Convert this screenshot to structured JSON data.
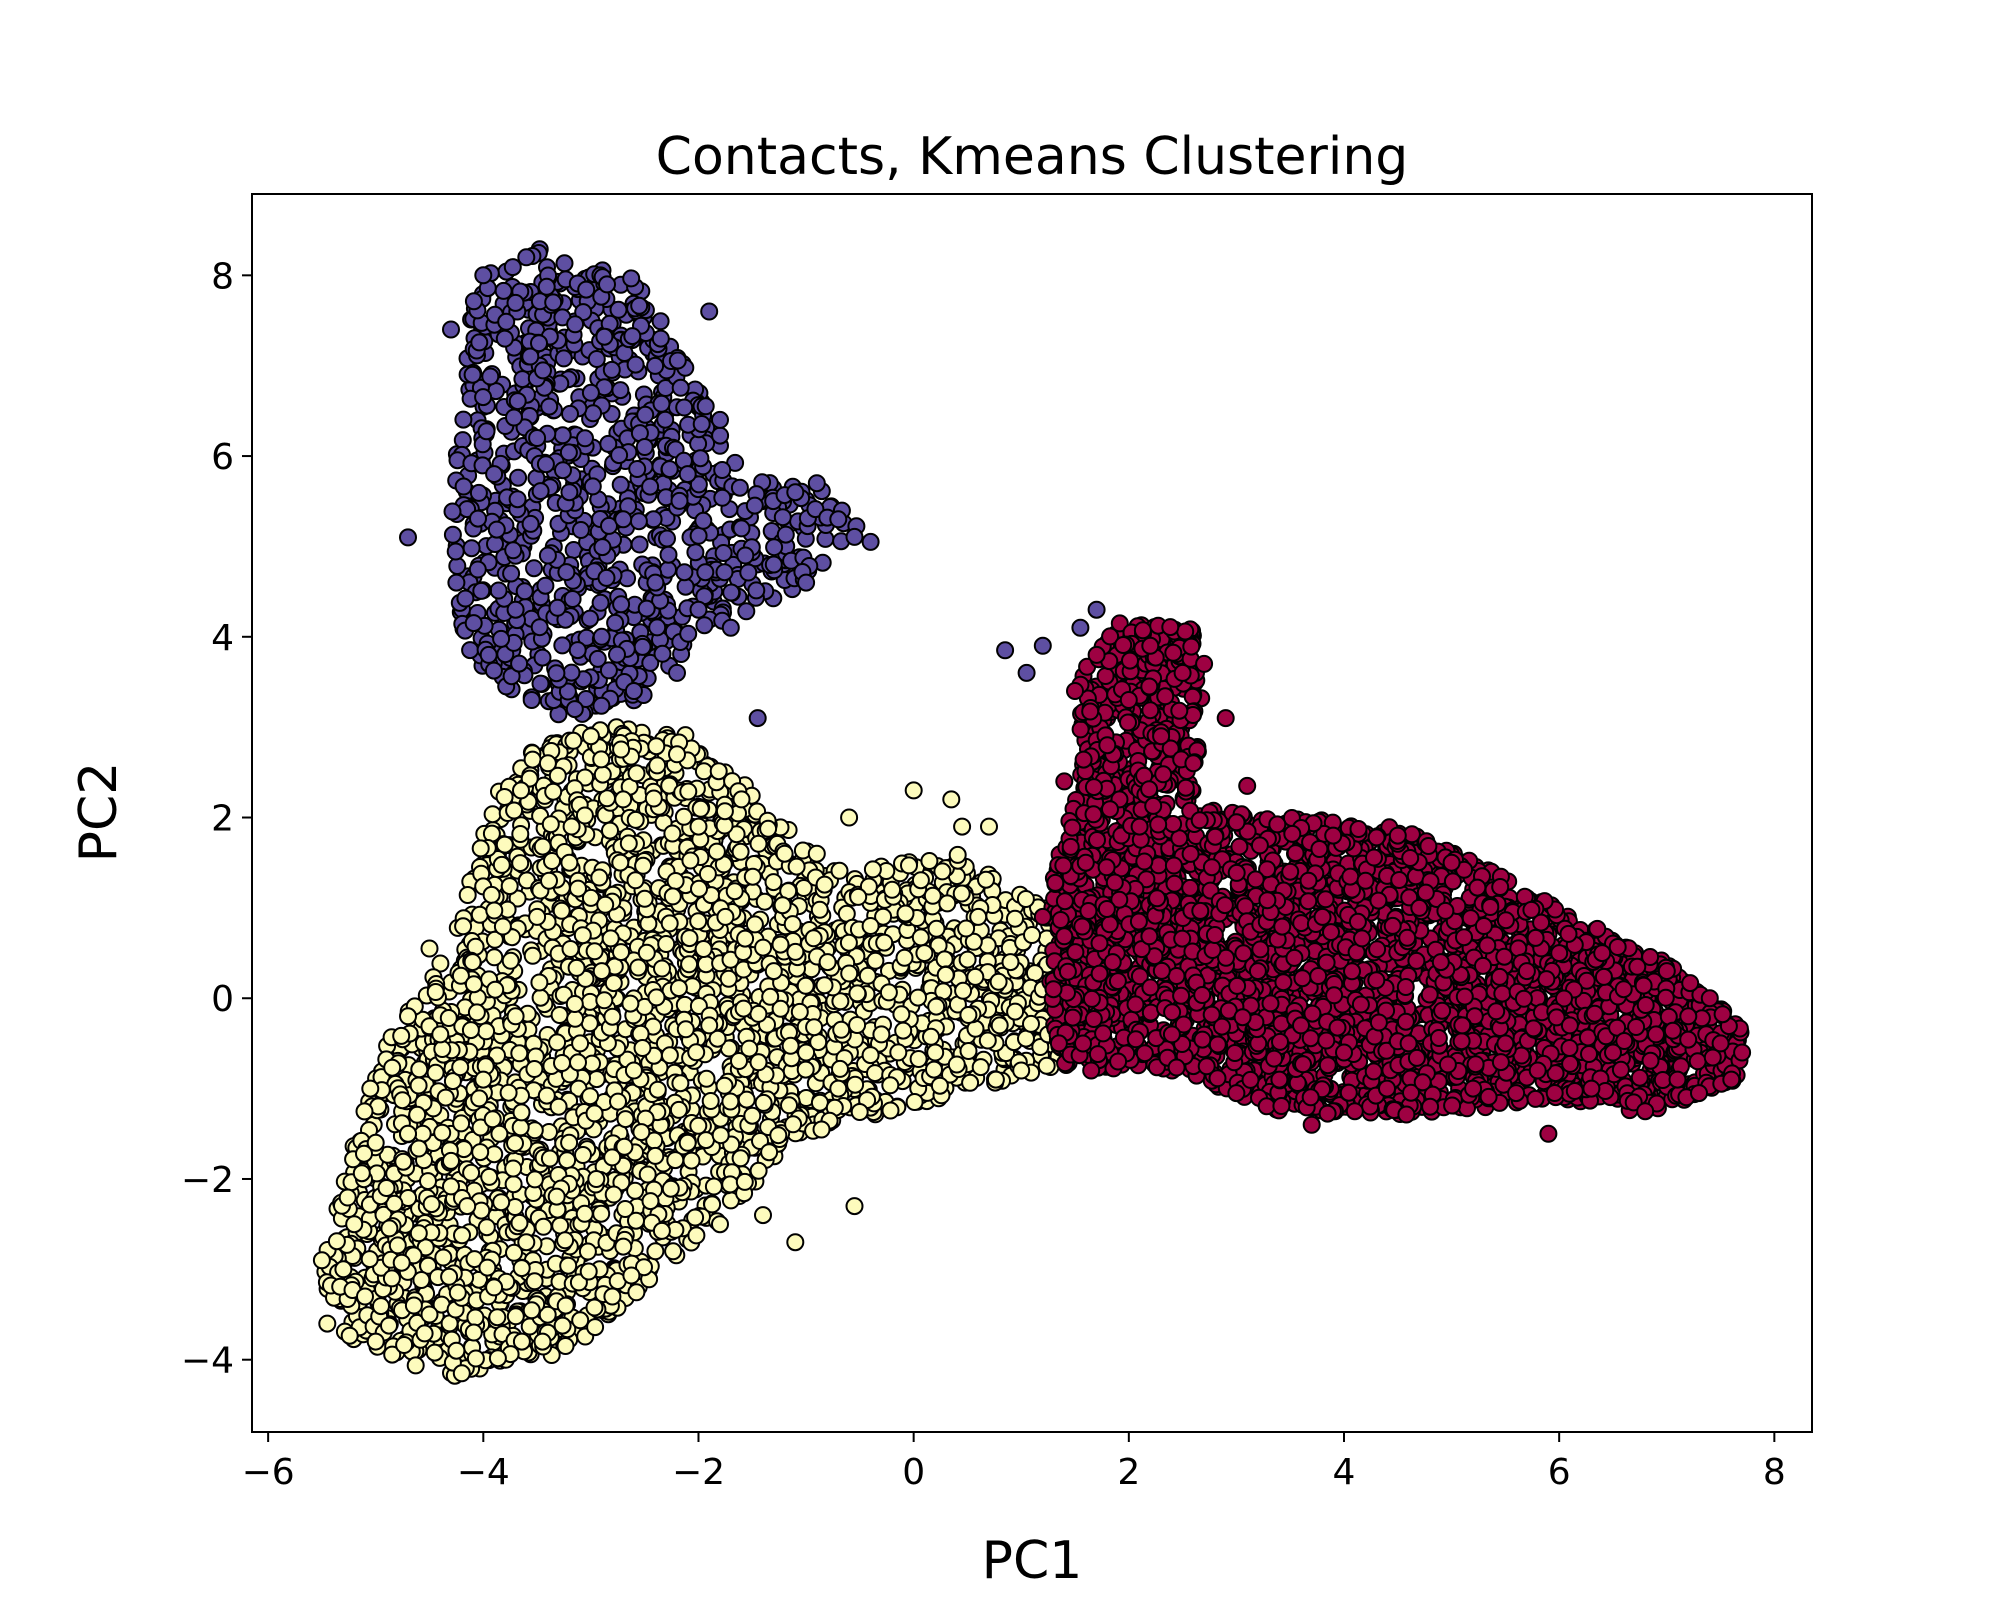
{
  "chart_data": {
    "type": "scatter",
    "title": "Contacts, Kmeans Clustering",
    "xlabel": "PC1",
    "ylabel": "PC2",
    "xlim": [
      -6.15,
      8.35
    ],
    "ylim": [
      -4.8,
      8.9
    ],
    "xticks": [
      -6,
      -4,
      -2,
      0,
      2,
      4,
      6,
      8
    ],
    "xtick_labels": [
      "−6",
      "−4",
      "−2",
      "0",
      "2",
      "4",
      "6",
      "8"
    ],
    "yticks": [
      -4,
      -2,
      0,
      2,
      4,
      6,
      8
    ],
    "ytick_labels": [
      "−4",
      "−2",
      "0",
      "2",
      "4",
      "6",
      "8"
    ],
    "grid": false,
    "legend": "none",
    "marker": "circle",
    "marker_edge_color": "#000000",
    "series": [
      {
        "color": "#fdfbbd",
        "points": [
          [
            -5.5,
            -2.9
          ],
          [
            -5.45,
            -3.6
          ],
          [
            -5.3,
            -3.0
          ],
          [
            -5.2,
            -2.5
          ],
          [
            -5.1,
            -3.3
          ],
          [
            -5.05,
            -1.0
          ],
          [
            -5.0,
            -1.6
          ],
          [
            -5.0,
            -3.8
          ],
          [
            -4.9,
            -2.1
          ],
          [
            -4.85,
            -3.1
          ],
          [
            -4.7,
            -0.2
          ],
          [
            -4.7,
            -1.5
          ],
          [
            -4.6,
            -2.6
          ],
          [
            -4.5,
            -3.5
          ],
          [
            -4.5,
            0.55
          ],
          [
            -4.4,
            -0.4
          ],
          [
            -4.35,
            -1.1
          ],
          [
            -4.3,
            -1.8
          ],
          [
            -4.25,
            -3.9
          ],
          [
            -4.2,
            -4.15
          ],
          [
            -4.15,
            -2.3
          ],
          [
            -4.1,
            0.4
          ],
          [
            -4.0,
            -0.9
          ],
          [
            -3.9,
            -3.2
          ],
          [
            -3.85,
            -1.5
          ],
          [
            -3.8,
            1.7
          ],
          [
            -3.7,
            -0.2
          ],
          [
            -3.65,
            2.3
          ],
          [
            -3.6,
            -2.7
          ],
          [
            -3.5,
            0.9
          ],
          [
            -3.45,
            -3.8
          ],
          [
            -3.4,
            2.6
          ],
          [
            -3.3,
            -1.2
          ],
          [
            -3.2,
            1.5
          ],
          [
            -3.1,
            -0.5
          ],
          [
            -3.0,
            2.9
          ],
          [
            -2.95,
            -2.0
          ],
          [
            -2.9,
            0.3
          ],
          [
            -2.8,
            -3.3
          ],
          [
            -2.7,
            2.2
          ],
          [
            -2.6,
            -0.8
          ],
          [
            -2.5,
            1.1
          ],
          [
            -2.4,
            -2.8
          ],
          [
            -2.3,
            0.6
          ],
          [
            -2.2,
            2.7
          ],
          [
            -2.1,
            -1.6
          ],
          [
            -2.0,
            1.9
          ],
          [
            -1.9,
            -0.3
          ],
          [
            -1.8,
            -2.5
          ],
          [
            -1.75,
            0.9
          ],
          [
            -1.6,
            2.2
          ],
          [
            -1.5,
            -1.3
          ],
          [
            -1.4,
            -2.4
          ],
          [
            -1.3,
            0.3
          ],
          [
            -1.2,
            1.6
          ],
          [
            -1.1,
            -2.7
          ],
          [
            -1.0,
            -0.6
          ],
          [
            -0.9,
            1.6
          ],
          [
            -0.8,
            0.4
          ],
          [
            -0.7,
            -1.0
          ],
          [
            -0.6,
            2.0
          ],
          [
            -0.55,
            -2.3
          ],
          [
            -0.4,
            0.8
          ],
          [
            -0.3,
            -0.4
          ],
          [
            -0.2,
            1.2
          ],
          [
            0.0,
            2.3
          ],
          [
            0.1,
            0.5
          ],
          [
            0.2,
            -0.6
          ],
          [
            0.35,
            2.2
          ],
          [
            0.45,
            1.9
          ],
          [
            0.6,
            0.9
          ],
          [
            0.7,
            1.9
          ],
          [
            0.8,
            -0.3
          ],
          [
            0.9,
            0.4
          ],
          [
            1.0,
            -0.8
          ],
          [
            1.1,
            0.7
          ],
          [
            1.2,
            0.1
          ],
          [
            1.25,
            -0.4
          ]
        ]
      },
      {
        "color": "#5e4fa2",
        "points": [
          [
            -4.7,
            5.1
          ],
          [
            -4.3,
            7.4
          ],
          [
            -4.25,
            4.6
          ],
          [
            -4.1,
            6.9
          ],
          [
            -4.0,
            8.0
          ],
          [
            -3.95,
            3.8
          ],
          [
            -3.9,
            5.8
          ],
          [
            -3.8,
            7.3
          ],
          [
            -3.7,
            4.3
          ],
          [
            -3.6,
            8.2
          ],
          [
            -3.55,
            3.3
          ],
          [
            -3.5,
            6.2
          ],
          [
            -3.4,
            4.9
          ],
          [
            -3.35,
            7.7
          ],
          [
            -3.2,
            5.6
          ],
          [
            -3.15,
            3.2
          ],
          [
            -3.0,
            6.7
          ],
          [
            -2.9,
            4.0
          ],
          [
            -2.85,
            7.9
          ],
          [
            -2.7,
            5.3
          ],
          [
            -2.6,
            3.4
          ],
          [
            -2.5,
            6.1
          ],
          [
            -2.4,
            4.6
          ],
          [
            -2.35,
            7.3
          ],
          [
            -2.2,
            3.6
          ],
          [
            -2.1,
            5.8
          ],
          [
            -2.0,
            4.3
          ],
          [
            -1.9,
            7.6
          ],
          [
            -1.8,
            6.4
          ],
          [
            -1.7,
            4.1
          ],
          [
            -1.6,
            5.2
          ],
          [
            -1.45,
            3.1
          ],
          [
            -1.3,
            4.8
          ],
          [
            -1.1,
            5.6
          ],
          [
            -1.0,
            4.6
          ],
          [
            -0.9,
            5.7
          ],
          [
            -0.7,
            5.3
          ],
          [
            -0.4,
            5.05
          ],
          [
            0.85,
            3.85
          ],
          [
            1.05,
            3.6
          ],
          [
            1.2,
            3.9
          ],
          [
            1.55,
            4.1
          ],
          [
            1.7,
            4.3
          ]
        ]
      },
      {
        "color": "#9e0142",
        "points": [
          [
            1.2,
            0.9
          ],
          [
            1.3,
            0.1
          ],
          [
            1.35,
            -0.5
          ],
          [
            1.4,
            2.4
          ],
          [
            1.5,
            3.4
          ],
          [
            1.6,
            1.5
          ],
          [
            1.65,
            -0.8
          ],
          [
            1.7,
            3.8
          ],
          [
            1.8,
            2.8
          ],
          [
            1.85,
            0.4
          ],
          [
            1.9,
            -0.7
          ],
          [
            2.0,
            3.3
          ],
          [
            2.1,
            1.9
          ],
          [
            2.2,
            3.9
          ],
          [
            2.3,
            2.9
          ],
          [
            2.4,
            -0.4
          ],
          [
            2.5,
            3.6
          ],
          [
            2.6,
            2.6
          ],
          [
            2.7,
            3.7
          ],
          [
            2.8,
            0.7
          ],
          [
            2.9,
            3.1
          ],
          [
            3.0,
            -1.05
          ],
          [
            3.1,
            2.35
          ],
          [
            3.2,
            0.3
          ],
          [
            3.4,
            -0.9
          ],
          [
            3.5,
            1.4
          ],
          [
            3.6,
            -0.3
          ],
          [
            3.7,
            -1.4
          ],
          [
            3.8,
            0.9
          ],
          [
            3.9,
            1.8
          ],
          [
            4.0,
            -0.6
          ],
          [
            4.1,
            -1.25
          ],
          [
            4.2,
            1.3
          ],
          [
            4.3,
            0.2
          ],
          [
            4.4,
            -1.0
          ],
          [
            4.5,
            1.8
          ],
          [
            4.6,
            -0.5
          ],
          [
            4.7,
            1.0
          ],
          [
            4.8,
            -1.2
          ],
          [
            4.9,
            0.4
          ],
          [
            5.0,
            1.5
          ],
          [
            5.1,
            -0.3
          ],
          [
            5.2,
            -1.0
          ],
          [
            5.3,
            0.8
          ],
          [
            5.5,
            -0.5
          ],
          [
            5.6,
            -1.05
          ],
          [
            5.7,
            0.3
          ],
          [
            5.8,
            -0.8
          ],
          [
            5.9,
            -1.5
          ],
          [
            6.0,
            0.5
          ],
          [
            6.1,
            -0.3
          ],
          [
            6.3,
            -1.0
          ],
          [
            6.4,
            0.5
          ],
          [
            6.5,
            -0.6
          ],
          [
            6.6,
            0.1
          ],
          [
            6.8,
            -1.25
          ],
          [
            6.9,
            -0.4
          ],
          [
            7.0,
            0.3
          ],
          [
            7.1,
            -0.9
          ],
          [
            7.2,
            -0.2
          ],
          [
            7.3,
            -1.05
          ],
          [
            7.4,
            0.0
          ],
          [
            7.5,
            -0.5
          ],
          [
            7.6,
            -0.9
          ],
          [
            7.7,
            -0.6
          ]
        ]
      }
    ],
    "cluster_shapes": [
      {
        "series": 0,
        "n": 3200,
        "seed": 11,
        "polygon": [
          [
            -5.5,
            -3.0
          ],
          [
            -5.3,
            -3.9
          ],
          [
            -4.2,
            -4.2
          ],
          [
            -3.2,
            -3.9
          ],
          [
            -2.0,
            -2.7
          ],
          [
            -1.0,
            -1.5
          ],
          [
            0.0,
            -1.2
          ],
          [
            1.35,
            -0.75
          ],
          [
            1.35,
            0.9
          ],
          [
            0.4,
            1.6
          ],
          [
            -0.8,
            1.4
          ],
          [
            -1.5,
            2.3
          ],
          [
            -2.2,
            3.0
          ],
          [
            -3.0,
            3.0
          ],
          [
            -3.8,
            2.6
          ],
          [
            -4.3,
            0.6
          ],
          [
            -4.9,
            -0.5
          ],
          [
            -5.2,
            -1.6
          ]
        ]
      },
      {
        "series": 1,
        "n": 950,
        "seed": 23,
        "polygon": [
          [
            -4.1,
            8.0
          ],
          [
            -3.5,
            8.3
          ],
          [
            -2.6,
            8.0
          ],
          [
            -2.2,
            7.2
          ],
          [
            -1.9,
            6.5
          ],
          [
            -1.6,
            5.8
          ],
          [
            -0.8,
            5.6
          ],
          [
            -0.4,
            5.05
          ],
          [
            -1.3,
            4.4
          ],
          [
            -2.0,
            4.0
          ],
          [
            -2.6,
            3.2
          ],
          [
            -3.2,
            3.1
          ],
          [
            -3.7,
            3.3
          ],
          [
            -4.2,
            3.9
          ],
          [
            -4.3,
            5.3
          ],
          [
            -4.2,
            6.9
          ]
        ]
      },
      {
        "series": 2,
        "n": 3400,
        "seed": 37,
        "polygon": [
          [
            1.3,
            1.4
          ],
          [
            1.55,
            2.4
          ],
          [
            1.55,
            3.6
          ],
          [
            1.9,
            4.15
          ],
          [
            2.6,
            4.1
          ],
          [
            2.7,
            3.2
          ],
          [
            2.6,
            2.1
          ],
          [
            3.6,
            2.0
          ],
          [
            4.5,
            1.9
          ],
          [
            5.4,
            1.4
          ],
          [
            6.3,
            0.8
          ],
          [
            7.0,
            0.4
          ],
          [
            7.7,
            -0.3
          ],
          [
            7.7,
            -0.9
          ],
          [
            6.8,
            -1.3
          ],
          [
            5.9,
            -1.1
          ],
          [
            4.8,
            -1.3
          ],
          [
            3.5,
            -1.3
          ],
          [
            2.4,
            -0.8
          ],
          [
            1.4,
            -0.8
          ],
          [
            1.25,
            0.0
          ]
        ]
      }
    ]
  }
}
